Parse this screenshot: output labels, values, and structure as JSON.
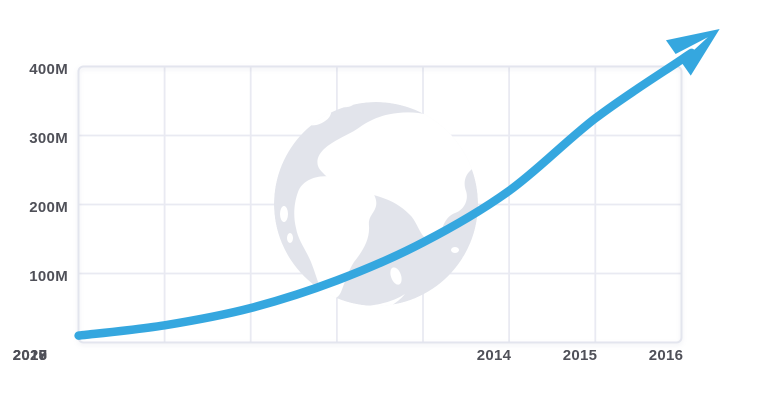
{
  "colors": {
    "line": "#35A7DF",
    "grid": "#E9EAF2",
    "grid-border": "#E3E5EE",
    "globe": "#E2E4EB",
    "continent": "#FFFFFF",
    "text": "#4F5058",
    "background": "#FFFFFF"
  },
  "axis": {
    "y_labels": [
      "400M",
      "300M",
      "200M",
      "100M"
    ],
    "x_labels": [
      "2014",
      "2015",
      "2016",
      "2017",
      "2018",
      "2019",
      "2020"
    ]
  },
  "icons": {
    "arrowhead": "paper-plane-icon",
    "watermark": "globe-icon"
  },
  "chart_data": {
    "type": "line",
    "title": "",
    "xlabel": "",
    "ylabel": "",
    "x": [
      2013,
      2014,
      2015,
      2016,
      2017,
      2018,
      2019,
      2020
    ],
    "series": [
      {
        "name": "users_millions",
        "values": [
          10,
          25,
          50,
          90,
          145,
          220,
          325,
          410
        ]
      }
    ],
    "unit": "M",
    "x_tick_labels": [
      "2014",
      "2015",
      "2016",
      "2017",
      "2018",
      "2019",
      "2020"
    ],
    "y_tick_labels": [
      "100M",
      "200M",
      "300M",
      "400M"
    ],
    "ylim": [
      0,
      400
    ],
    "xlim": [
      2013,
      2020
    ],
    "grid": true,
    "legend": false,
    "style_notes": "thick smooth sky-blue exponential curve ending in a paper-plane arrowhead above the 2020 corner; pale gray globe watermark behind center of plot"
  }
}
